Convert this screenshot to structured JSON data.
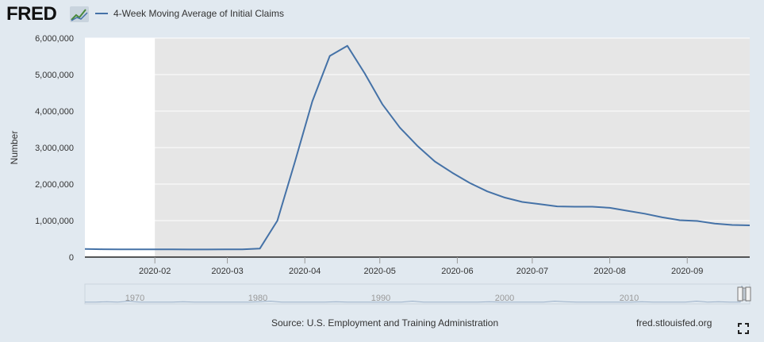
{
  "header": {
    "logo": "FRED",
    "logo_icon": "fred-chart-icon",
    "legend_label": "4-Week Moving Average of Initial Claims"
  },
  "footer": {
    "source": "Source: U.S. Employment and Training Administration",
    "site": "fred.stlouisfed.org",
    "fullscreen_icon": "fullscreen-icon"
  },
  "colors": {
    "line": "#4572a7",
    "plot_background": "#e6e6e6",
    "page_background": "#e1e9f0"
  },
  "chart_data": {
    "type": "line",
    "ylabel": "Number",
    "ylim": [
      0,
      6000000
    ],
    "y_ticks": [
      {
        "value": 0,
        "label": "0"
      },
      {
        "value": 1000000,
        "label": "1,000,000"
      },
      {
        "value": 2000000,
        "label": "2,000,000"
      },
      {
        "value": 3000000,
        "label": "3,000,000"
      },
      {
        "value": 4000000,
        "label": "4,000,000"
      },
      {
        "value": 5000000,
        "label": "5,000,000"
      },
      {
        "value": 6000000,
        "label": "6,000,000"
      }
    ],
    "xlim": [
      "2020-01-04",
      "2020-09-26"
    ],
    "x_ticks": [
      {
        "date": "2020-02-01",
        "label": "2020-02"
      },
      {
        "date": "2020-03-01",
        "label": "2020-03"
      },
      {
        "date": "2020-04-01",
        "label": "2020-04"
      },
      {
        "date": "2020-05-01",
        "label": "2020-05"
      },
      {
        "date": "2020-06-01",
        "label": "2020-06"
      },
      {
        "date": "2020-07-01",
        "label": "2020-07"
      },
      {
        "date": "2020-08-01",
        "label": "2020-08"
      },
      {
        "date": "2020-09-01",
        "label": "2020-09"
      }
    ],
    "shaded_region": {
      "start": "2020-02-01",
      "end": "2020-09-26"
    },
    "series": [
      {
        "name": "4-Week Moving Average of Initial Claims",
        "x": [
          "2020-01-04",
          "2020-01-11",
          "2020-01-18",
          "2020-01-25",
          "2020-02-01",
          "2020-02-08",
          "2020-02-15",
          "2020-02-22",
          "2020-02-29",
          "2020-03-07",
          "2020-03-14",
          "2020-03-21",
          "2020-03-28",
          "2020-04-04",
          "2020-04-11",
          "2020-04-18",
          "2020-04-25",
          "2020-05-02",
          "2020-05-09",
          "2020-05-16",
          "2020-05-23",
          "2020-05-30",
          "2020-06-06",
          "2020-06-13",
          "2020-06-20",
          "2020-06-27",
          "2020-07-04",
          "2020-07-11",
          "2020-07-18",
          "2020-07-25",
          "2020-08-01",
          "2020-08-08",
          "2020-08-15",
          "2020-08-22",
          "2020-08-29",
          "2020-09-05",
          "2020-09-12",
          "2020-09-19",
          "2020-09-26"
        ],
        "values": [
          224000,
          216000,
          214000,
          212000,
          212000,
          210000,
          208000,
          208000,
          210000,
          212000,
          232000,
          998000,
          2600000,
          4270000,
          5510000,
          5790000,
          5030000,
          4190000,
          3550000,
          3050000,
          2620000,
          2310000,
          2030000,
          1800000,
          1630000,
          1510000,
          1450000,
          1390000,
          1380000,
          1380000,
          1350000,
          1270000,
          1190000,
          1090000,
          1010000,
          990000,
          920000,
          880000,
          870000
        ]
      }
    ],
    "navigator": {
      "labels": [
        "1970",
        "1980",
        "1990",
        "2000",
        "2010"
      ]
    }
  }
}
